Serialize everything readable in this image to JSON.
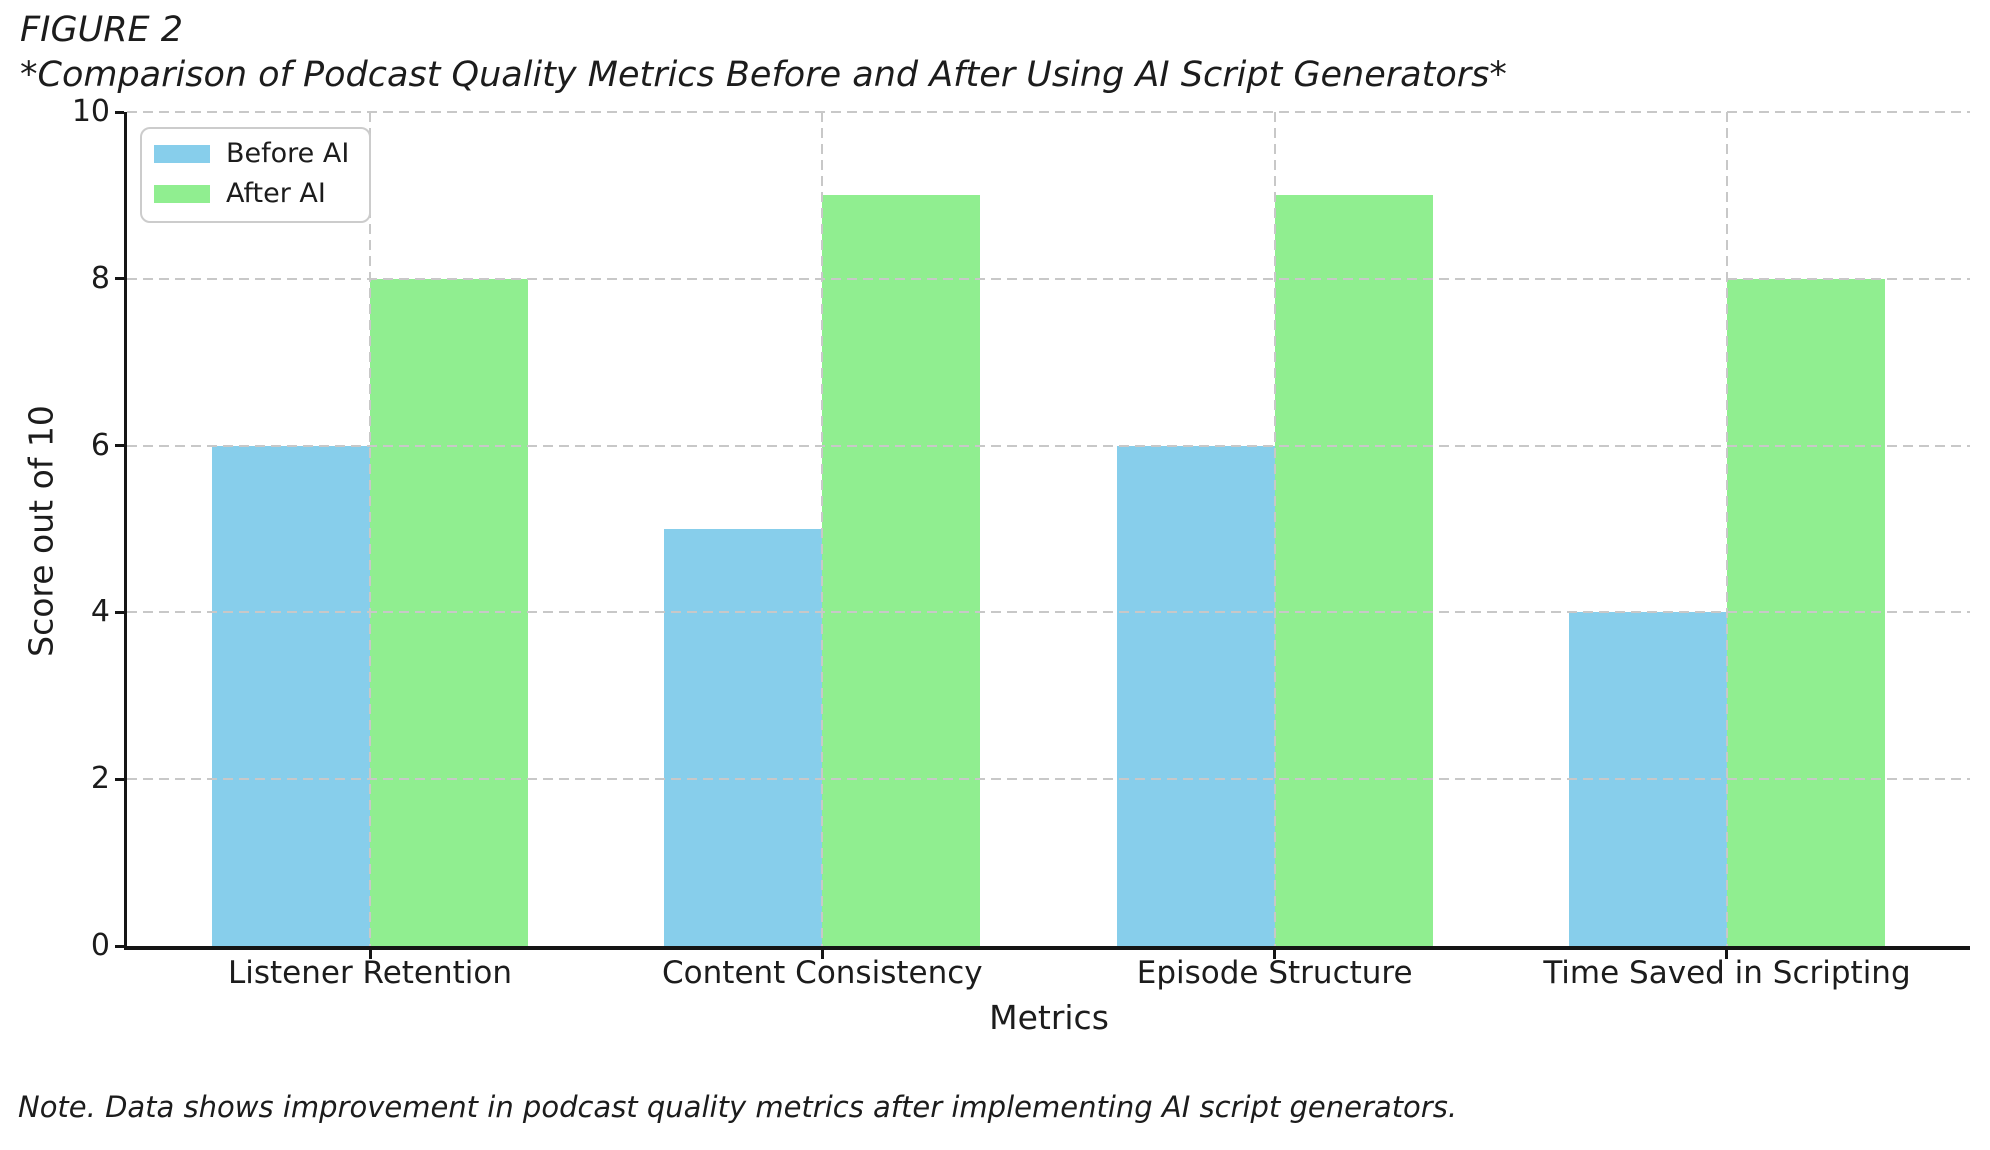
{
  "figure": {
    "label": "FIGURE 2",
    "title": "*Comparison of Podcast Quality Metrics Before and After Using AI Script Generators*",
    "note": "Note. Data shows improvement in podcast quality metrics after implementing AI script generators."
  },
  "chart_data": {
    "type": "bar",
    "title": "Comparison of Podcast Quality Metrics Before and After Using AI Script Generators",
    "categories": [
      "Listener Retention",
      "Content Consistency",
      "Episode Structure",
      "Time Saved in Scripting"
    ],
    "series": [
      {
        "name": "Before AI",
        "color": "#87CEEB",
        "values": [
          6,
          5,
          6,
          4
        ]
      },
      {
        "name": "After AI",
        "color": "#90EE90",
        "values": [
          8,
          9,
          9,
          8
        ]
      }
    ],
    "xlabel": "Metrics",
    "ylabel": "Score out of 10",
    "ylim": [
      0,
      10
    ],
    "yticks": [
      0,
      2,
      4,
      6,
      8,
      10
    ],
    "grid": "dashed",
    "grid_color": "#c8c8c8",
    "legend_position": "upper-left",
    "bar_edge": "none",
    "axis_color": "#151515",
    "text_color": "#1c1c1c"
  }
}
